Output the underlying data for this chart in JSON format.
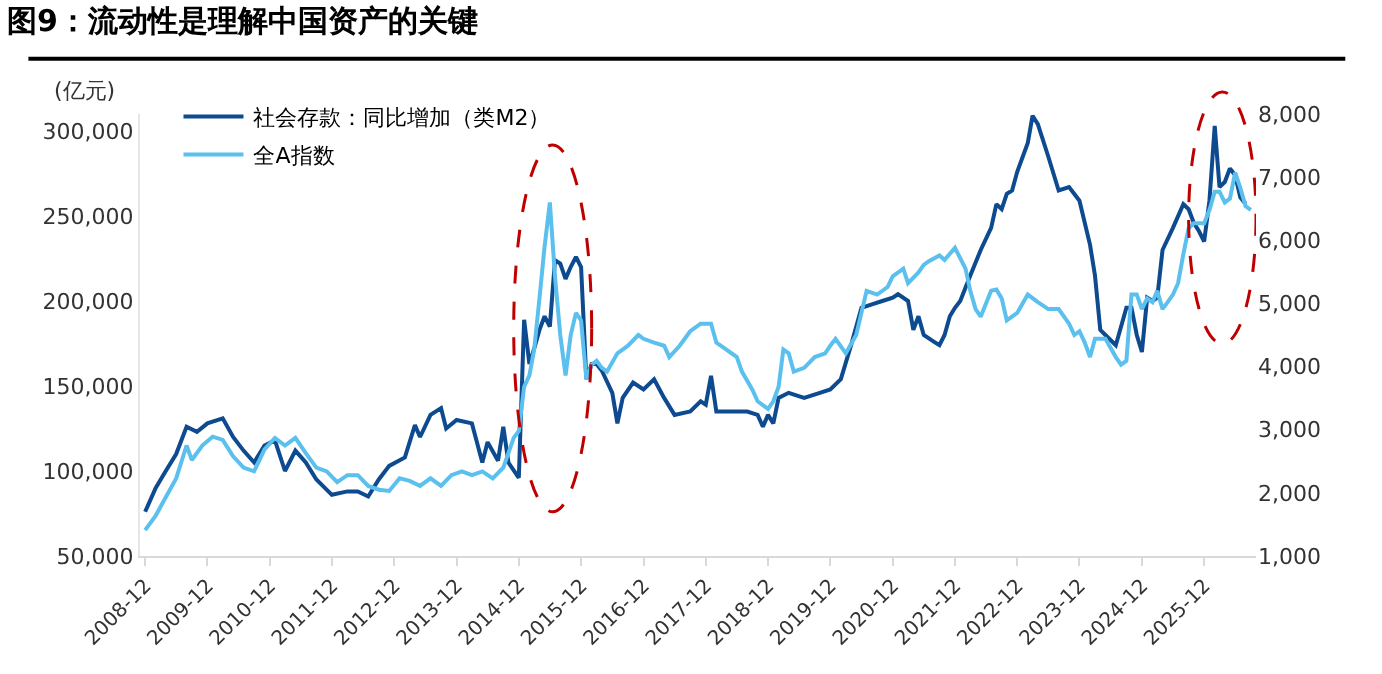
{
  "chart_data": {
    "type": "line",
    "title": "图9：流动性是理解中国资产的关键",
    "ylabel": "(亿元)",
    "xlim": [
      "2008-11",
      "2026-10"
    ],
    "xticks": [
      "2008-12",
      "2009-12",
      "2010-12",
      "2011-12",
      "2012-12",
      "2013-12",
      "2014-12",
      "2015-12",
      "2016-12",
      "2017-12",
      "2018-12",
      "2019-12",
      "2020-12",
      "2021-12",
      "2022-12",
      "2023-12",
      "2024-12",
      "2025-12"
    ],
    "ylim": [
      50000,
      310000
    ],
    "yticks": [
      {
        "value": 50000,
        "label": "50,000"
      },
      {
        "value": 100000,
        "label": "100,000"
      },
      {
        "value": 150000,
        "label": "150,000"
      },
      {
        "value": 200000,
        "label": "200,000"
      },
      {
        "value": 250000,
        "label": "250,000"
      },
      {
        "value": 300000,
        "label": "300,000"
      }
    ],
    "y2lim": [
      1000,
      8000
    ],
    "y2ticks": [
      {
        "value": 1000,
        "label": "1,000"
      },
      {
        "value": 2000,
        "label": "2,000"
      },
      {
        "value": 3000,
        "label": "3,000"
      },
      {
        "value": 4000,
        "label": "4,000"
      },
      {
        "value": 5000,
        "label": "5,000"
      },
      {
        "value": 6000,
        "label": "6,000"
      },
      {
        "value": 7000,
        "label": "7,000"
      },
      {
        "value": 8000,
        "label": "8,000"
      }
    ],
    "legend": "top left",
    "marker": "none",
    "line_style": "solid",
    "series": [
      {
        "name": "社会存款：同比增加（类M2）",
        "color": "#0d4a8f",
        "x": [
          "2008-12",
          "2009-02",
          "2009-04",
          "2009-06",
          "2009-08",
          "2009-10",
          "2009-12",
          "2010-03",
          "2010-05",
          "2010-07",
          "2010-09",
          "2010-11",
          "2011-01",
          "2011-03",
          "2011-05",
          "2011-07",
          "2011-09",
          "2011-12",
          "2012-03",
          "2012-05",
          "2012-07",
          "2012-09",
          "2012-11",
          "2013-02",
          "2013-04",
          "2013-05",
          "2013-07",
          "2013-09",
          "2013-10",
          "2013-12",
          "2014-03",
          "2014-05",
          "2014-06",
          "2014-08",
          "2014-09",
          "2014-10",
          "2014-12",
          "2015-01",
          "2015-02",
          "2015-03",
          "2015-04",
          "2015-05",
          "2015-06",
          "2015-07",
          "2015-08",
          "2015-09",
          "2015-10",
          "2015-11",
          "2015-12",
          "2016-01",
          "2016-02",
          "2016-03",
          "2016-04",
          "2016-06",
          "2016-07",
          "2016-08",
          "2016-10",
          "2016-12",
          "2017-02",
          "2017-04",
          "2017-06",
          "2017-09",
          "2017-11",
          "2017-12",
          "2018-01",
          "2018-02",
          "2018-05",
          "2018-08",
          "2018-10",
          "2018-11",
          "2018-12",
          "2019-01",
          "2019-02",
          "2019-04",
          "2019-07",
          "2019-10",
          "2019-12",
          "2020-02",
          "2020-04",
          "2020-06",
          "2020-08",
          "2020-10",
          "2020-12",
          "2021-01",
          "2021-03",
          "2021-04",
          "2021-05",
          "2021-06",
          "2021-08",
          "2021-09",
          "2021-10",
          "2021-11",
          "2021-12",
          "2022-01",
          "2022-03",
          "2022-05",
          "2022-07",
          "2022-08",
          "2022-09",
          "2022-10",
          "2022-11",
          "2022-12",
          "2023-02",
          "2023-03",
          "2023-04",
          "2023-06",
          "2023-08",
          "2023-10",
          "2023-12",
          "2024-02",
          "2024-03",
          "2024-04",
          "2024-05",
          "2024-07",
          "2024-09",
          "2024-10",
          "2024-11",
          "2024-12",
          "2025-01",
          "2025-02",
          "2025-03",
          "2025-04",
          "2025-06",
          "2025-08",
          "2025-09",
          "2025-10",
          "2025-11",
          "2025-12",
          "2026-01",
          "2026-02",
          "2026-03",
          "2026-04",
          "2026-05",
          "2026-06",
          "2026-07",
          "2026-08"
        ],
        "values": [
          76000,
          90000,
          100000,
          110000,
          126000,
          123000,
          128000,
          131000,
          120000,
          112000,
          105000,
          115000,
          118000,
          100000,
          112000,
          105000,
          95000,
          86000,
          88000,
          88000,
          85000,
          95000,
          103000,
          108000,
          127000,
          120000,
          133000,
          137000,
          125000,
          130000,
          128000,
          105000,
          117000,
          106000,
          126000,
          105000,
          96000,
          189000,
          163000,
          172000,
          183000,
          191000,
          185000,
          224000,
          222000,
          213000,
          220000,
          226000,
          220000,
          154000,
          163000,
          163000,
          159000,
          146000,
          128000,
          143000,
          152000,
          148000,
          154000,
          143000,
          133000,
          135000,
          141000,
          139000,
          156000,
          135000,
          135000,
          135000,
          133000,
          126000,
          133000,
          128000,
          143000,
          146000,
          143000,
          146000,
          148000,
          154000,
          174000,
          196000,
          198000,
          200000,
          202000,
          204000,
          200000,
          183000,
          191000,
          180000,
          176000,
          174000,
          180000,
          191000,
          196000,
          200000,
          215000,
          230000,
          243000,
          257000,
          254000,
          263000,
          265000,
          276000,
          293000,
          309000,
          304000,
          285000,
          265000,
          267000,
          259000,
          233000,
          215000,
          183000,
          180000,
          174000,
          196000,
          196000,
          180000,
          170000,
          202000,
          200000,
          202000,
          230000,
          243000,
          257000,
          254000,
          246000,
          241000,
          235000,
          259000,
          303000,
          267000,
          270000,
          278000,
          274000,
          261000,
          257000
        ]
      },
      {
        "name": "全A指数",
        "color": "#5bc0ee",
        "axis": "y2",
        "x": [
          "2008-12",
          "2009-02",
          "2009-04",
          "2009-06",
          "2009-08",
          "2009-09",
          "2009-11",
          "2010-01",
          "2010-03",
          "2010-05",
          "2010-07",
          "2010-09",
          "2010-11",
          "2011-01",
          "2011-03",
          "2011-05",
          "2011-07",
          "2011-09",
          "2011-11",
          "2012-01",
          "2012-03",
          "2012-05",
          "2012-07",
          "2012-09",
          "2012-11",
          "2013-01",
          "2013-03",
          "2013-05",
          "2013-07",
          "2013-09",
          "2013-11",
          "2014-01",
          "2014-03",
          "2014-05",
          "2014-07",
          "2014-09",
          "2014-11",
          "2014-12",
          "2015-01",
          "2015-02",
          "2015-03",
          "2015-04",
          "2015-05",
          "2015-06",
          "2015-07",
          "2015-08",
          "2015-09",
          "2015-10",
          "2015-11",
          "2015-12",
          "2016-01",
          "2016-02",
          "2016-03",
          "2016-04",
          "2016-05",
          "2016-07",
          "2016-09",
          "2016-11",
          "2016-12",
          "2017-02",
          "2017-04",
          "2017-05",
          "2017-07",
          "2017-09",
          "2017-11",
          "2018-01",
          "2018-02",
          "2018-04",
          "2018-06",
          "2018-07",
          "2018-09",
          "2018-10",
          "2018-12",
          "2019-01",
          "2019-02",
          "2019-03",
          "2019-04",
          "2019-05",
          "2019-07",
          "2019-09",
          "2019-11",
          "2019-12",
          "2020-01",
          "2020-03",
          "2020-05",
          "2020-07",
          "2020-09",
          "2020-11",
          "2020-12",
          "2021-02",
          "2021-03",
          "2021-05",
          "2021-06",
          "2021-07",
          "2021-09",
          "2021-10",
          "2021-12",
          "2022-02",
          "2022-03",
          "2022-04",
          "2022-05",
          "2022-07",
          "2022-08",
          "2022-09",
          "2022-10",
          "2022-12",
          "2023-02",
          "2023-04",
          "2023-06",
          "2023-08",
          "2023-10",
          "2023-11",
          "2023-12",
          "2024-01",
          "2024-02",
          "2024-03",
          "2024-05",
          "2024-07",
          "2024-08",
          "2024-09",
          "2024-10",
          "2024-11",
          "2024-12",
          "2025-01",
          "2025-02",
          "2025-03",
          "2025-04",
          "2025-05",
          "2025-06",
          "2025-07",
          "2025-08",
          "2025-09",
          "2025-10",
          "2025-11",
          "2025-12",
          "2026-01",
          "2026-02",
          "2026-03",
          "2026-04",
          "2026-05",
          "2026-06",
          "2026-07",
          "2026-08",
          "2026-09"
        ],
        "values": [
          1410,
          1640,
          1930,
          2230,
          2750,
          2520,
          2750,
          2890,
          2840,
          2580,
          2400,
          2340,
          2690,
          2870,
          2750,
          2870,
          2630,
          2400,
          2340,
          2170,
          2280,
          2280,
          2110,
          2050,
          2030,
          2230,
          2190,
          2110,
          2230,
          2110,
          2280,
          2340,
          2280,
          2340,
          2230,
          2400,
          2870,
          2980,
          3680,
          3860,
          4270,
          5080,
          5900,
          6600,
          5430,
          4500,
          3860,
          4500,
          4850,
          4730,
          3800,
          4030,
          4090,
          3980,
          3920,
          4210,
          4330,
          4500,
          4440,
          4380,
          4330,
          4150,
          4330,
          4560,
          4680,
          4680,
          4380,
          4270,
          4150,
          3920,
          3630,
          3450,
          3330,
          3450,
          3680,
          4270,
          4210,
          3920,
          3980,
          4150,
          4210,
          4330,
          4440,
          4210,
          4500,
          5200,
          5140,
          5260,
          5430,
          5550,
          5320,
          5490,
          5610,
          5670,
          5760,
          5690,
          5880,
          5550,
          5200,
          4910,
          4790,
          5200,
          5220,
          5080,
          4730,
          4850,
          5140,
          5020,
          4910,
          4910,
          4680,
          4500,
          4560,
          4380,
          4150,
          4440,
          4440,
          4150,
          4030,
          4090,
          5140,
          5140,
          4910,
          5080,
          5020,
          5200,
          4910,
          5020,
          5140,
          5320,
          5780,
          6190,
          6270,
          6270,
          6270,
          6480,
          6770,
          6770,
          6600,
          6660,
          7070,
          6830,
          6540,
          6480
        ]
      }
    ]
  }
}
